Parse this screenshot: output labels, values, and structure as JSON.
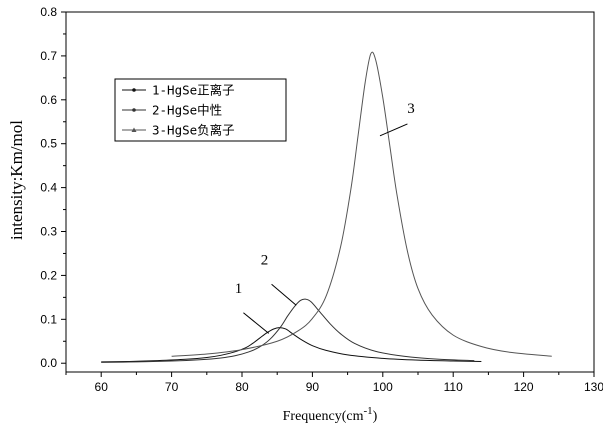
{
  "chart_data": {
    "type": "line",
    "title": "",
    "xlabel": "Frequency(cm",
    "xlabel_sup": "-1",
    "xlabel_tail": ")",
    "ylabel": "intensity:Km/mol",
    "xlim": [
      55,
      130
    ],
    "ylim": [
      -0.02,
      0.8
    ],
    "xticks": [
      60,
      70,
      80,
      90,
      100,
      110,
      120,
      130
    ],
    "yticks": [
      0.0,
      0.1,
      0.2,
      0.3,
      0.4,
      0.5,
      0.6,
      0.7,
      0.8
    ],
    "ytick_labels": [
      "0.0",
      "0.1",
      "0.2",
      "0.3",
      "0.4",
      "0.5",
      "0.6",
      "0.7",
      "0.8"
    ],
    "legend_position": "upper-left",
    "series": [
      {
        "name": "1-HgSe正离子",
        "color": "#111111",
        "marker": "dot",
        "x": [
          60,
          64,
          68,
          72,
          75,
          77,
          79,
          80.5,
          81.5,
          82.5,
          83.5,
          84.5,
          85.3,
          86.2,
          87.2,
          88.5,
          90,
          92,
          95,
          100,
          105,
          110,
          114
        ],
        "y": [
          0.003,
          0.004,
          0.006,
          0.009,
          0.013,
          0.018,
          0.026,
          0.035,
          0.045,
          0.057,
          0.069,
          0.078,
          0.081,
          0.078,
          0.067,
          0.053,
          0.04,
          0.029,
          0.019,
          0.011,
          0.007,
          0.005,
          0.004
        ]
      },
      {
        "name": "2-HgSe中性",
        "color": "#333333",
        "marker": "dot",
        "x": [
          60,
          65,
          70,
          74,
          77,
          79,
          81,
          82.5,
          84,
          85.5,
          86.5,
          87.5,
          88.3,
          89,
          89.8,
          91,
          92.5,
          94,
          96,
          99,
          103,
          108,
          113
        ],
        "y": [
          0.002,
          0.003,
          0.005,
          0.008,
          0.012,
          0.017,
          0.026,
          0.037,
          0.055,
          0.083,
          0.108,
          0.13,
          0.143,
          0.146,
          0.14,
          0.118,
          0.09,
          0.067,
          0.045,
          0.027,
          0.016,
          0.009,
          0.006
        ]
      },
      {
        "name": "3-HgSe负离子",
        "color": "#555555",
        "marker": "triangle",
        "x": [
          70,
          75,
          80,
          85,
          88,
          90,
          92,
          94,
          95.5,
          96.5,
          97.5,
          98.3,
          99,
          100,
          101,
          102,
          103.5,
          105,
          107,
          110,
          114,
          118,
          124
        ],
        "y": [
          0.016,
          0.021,
          0.031,
          0.05,
          0.074,
          0.102,
          0.155,
          0.265,
          0.4,
          0.52,
          0.64,
          0.705,
          0.69,
          0.605,
          0.495,
          0.385,
          0.255,
          0.17,
          0.11,
          0.064,
          0.038,
          0.025,
          0.016
        ]
      }
    ],
    "annotations": [
      {
        "label": "1",
        "text_at": [
          79.5,
          0.16
        ],
        "line_from": [
          80.2,
          0.115
        ],
        "line_to": [
          83.8,
          0.068
        ]
      },
      {
        "label": "2",
        "text_at": [
          83.2,
          0.225
        ],
        "line_from": [
          84.2,
          0.18
        ],
        "line_to": [
          87.7,
          0.132
        ]
      },
      {
        "label": "3",
        "text_at": [
          104.0,
          0.57
        ],
        "line_from": [
          103.5,
          0.545
        ],
        "line_to": [
          99.6,
          0.518
        ]
      }
    ]
  }
}
